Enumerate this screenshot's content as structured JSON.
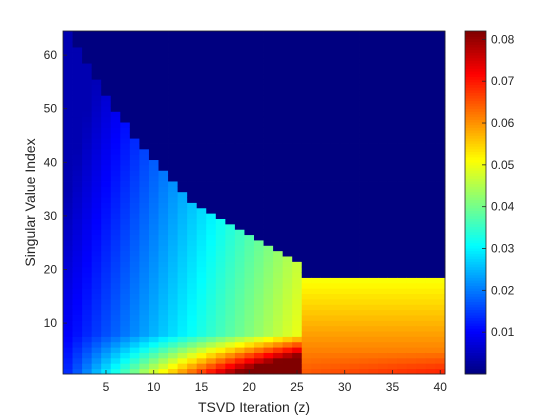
{
  "chart_data": {
    "type": "heatmap",
    "title": "",
    "xlabel": "TSVD Iteration (z)",
    "ylabel": "Singular Value Index",
    "x_range": [
      1,
      40
    ],
    "y_range": [
      1,
      64
    ],
    "x_ticks": [
      5,
      10,
      15,
      20,
      25,
      30,
      35,
      40
    ],
    "y_ticks": [
      10,
      20,
      30,
      40,
      50,
      60
    ],
    "colormap": "jet",
    "color_range": [
      0,
      0.082
    ],
    "colorbar_ticks": [
      0.01,
      0.02,
      0.03,
      0.04,
      0.05,
      0.06,
      0.07,
      0.08
    ],
    "colorbar_position": "right",
    "active_boundary": {
      "description_z": [
        1,
        2,
        3,
        4,
        5,
        6,
        7,
        8,
        9,
        10,
        11,
        12,
        13,
        14,
        15,
        16,
        17,
        18,
        19,
        20,
        21,
        22,
        23,
        24,
        25,
        26,
        40
      ],
      "max_index": [
        64,
        61,
        58,
        55,
        52,
        49,
        47,
        44,
        42,
        40,
        38,
        36,
        34,
        32,
        31,
        30,
        29,
        28,
        27,
        26,
        25,
        24,
        23,
        22,
        21,
        18,
        18
      ]
    },
    "value_samples": [
      {
        "z": 1,
        "index": 1,
        "value": 0.012
      },
      {
        "z": 10,
        "index": 1,
        "value": 0.03
      },
      {
        "z": 15,
        "index": 5,
        "value": 0.04
      },
      {
        "z": 20,
        "index": 5,
        "value": 0.052
      },
      {
        "z": 24,
        "index": 2,
        "value": 0.066
      },
      {
        "z": 26,
        "index": 15,
        "value": 0.05
      },
      {
        "z": 30,
        "index": 5,
        "value": 0.065
      },
      {
        "z": 39,
        "index": 1,
        "value": 0.082
      },
      {
        "z": 1,
        "index": 60,
        "value": 0.008
      },
      {
        "z": 30,
        "index": 40,
        "value": 0.0
      }
    ]
  }
}
